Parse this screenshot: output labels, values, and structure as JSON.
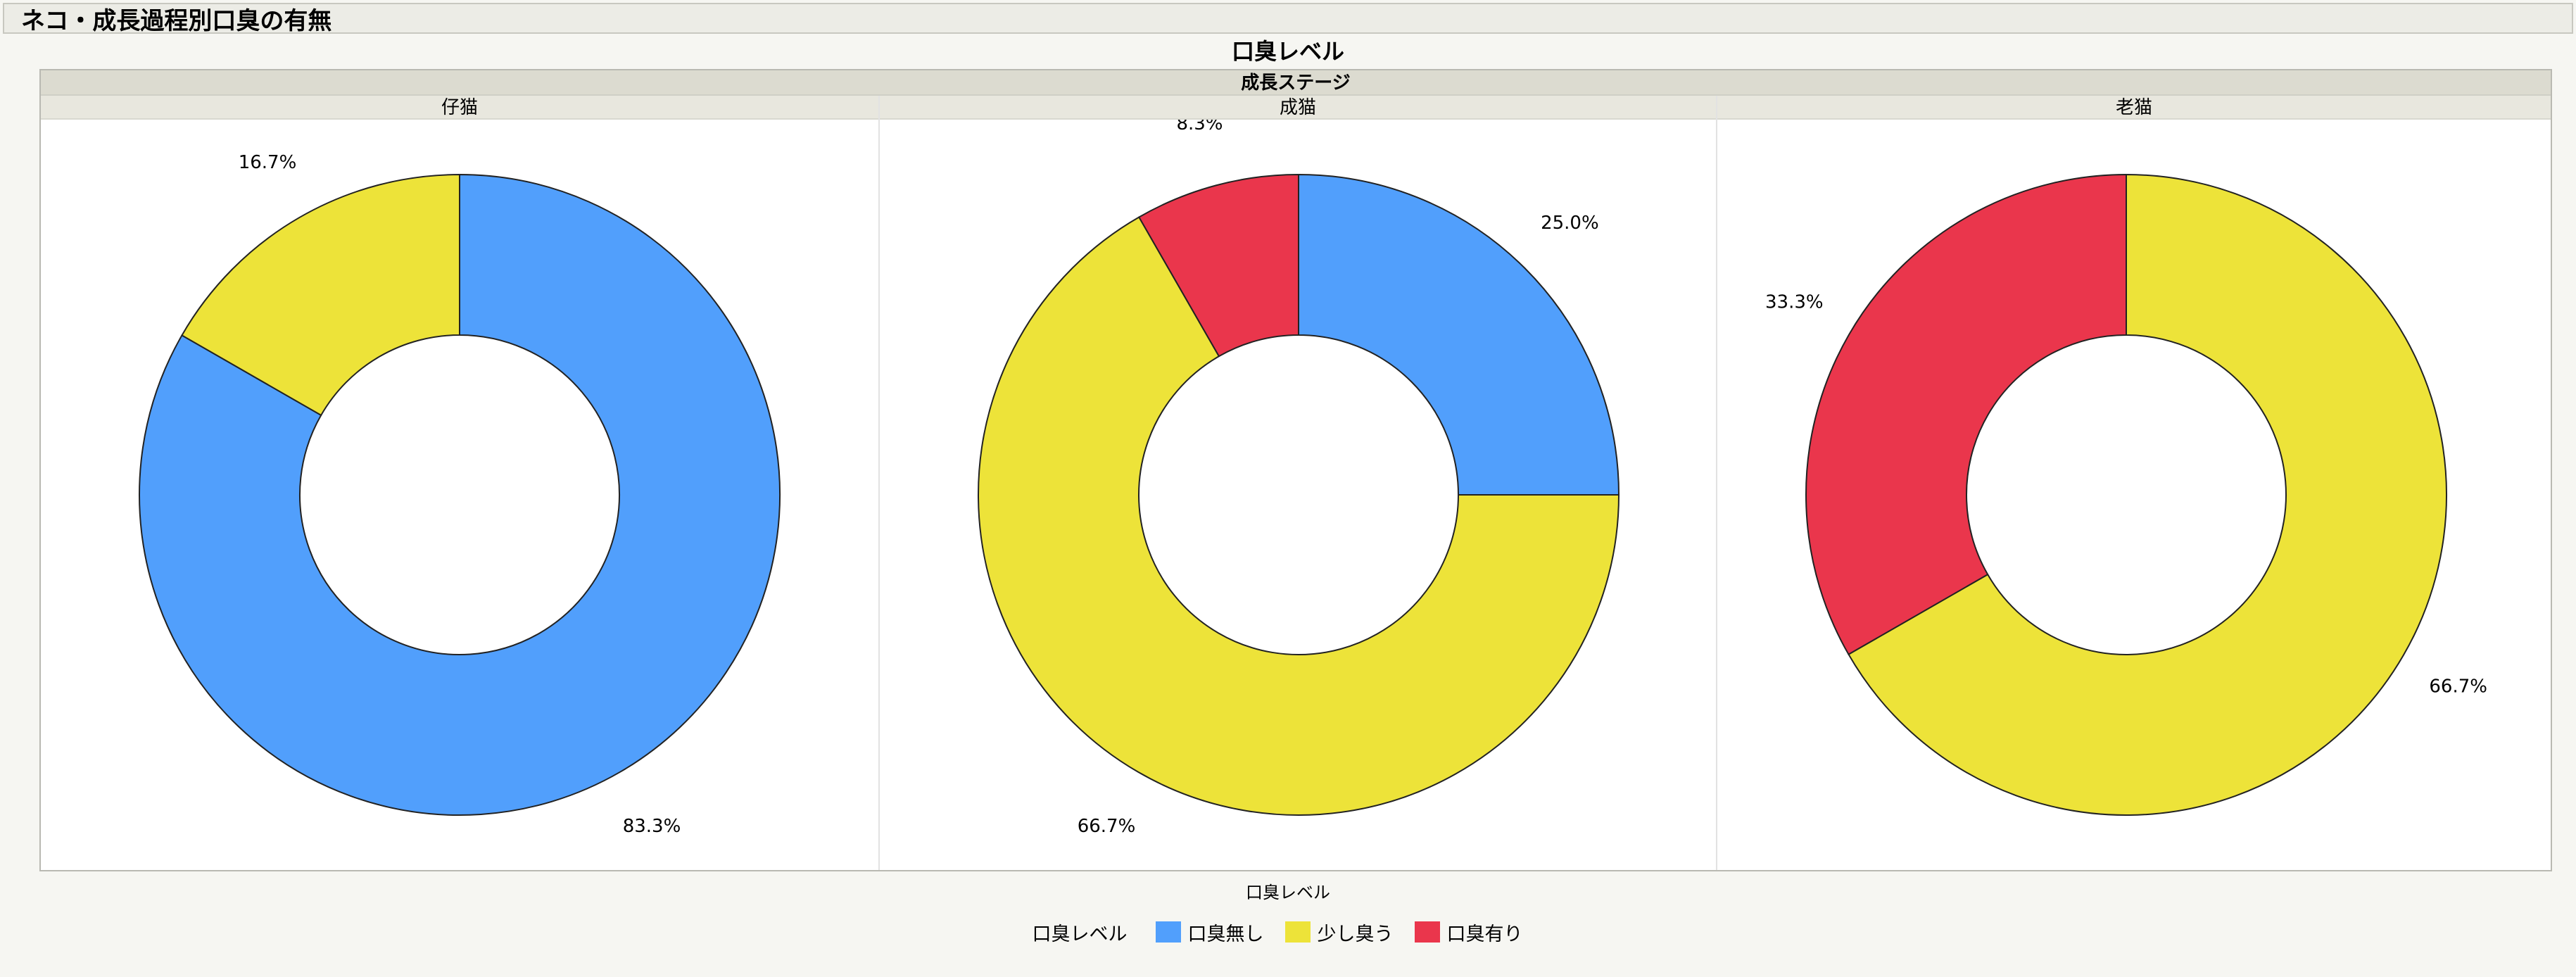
{
  "report": {
    "title": "ネコ・成長過程別口臭の有無"
  },
  "chart_data": {
    "type": "donut",
    "title": "口臭レベル",
    "group_label": "成長ステージ",
    "xlabel": "口臭レベル",
    "legend": {
      "title": "口臭レベル",
      "placement": "bottom-center",
      "items": [
        {
          "name": "口臭無し",
          "color": "#519ffc"
        },
        {
          "name": "少し臭う",
          "color": "#ede339"
        },
        {
          "name": "口臭有り",
          "color": "#ea364c"
        }
      ]
    },
    "categories": [
      "口臭無し",
      "少し臭う",
      "口臭有り"
    ],
    "panels": [
      {
        "label": "仔猫",
        "values": [
          83.3,
          16.7,
          0.0
        ],
        "labels": [
          "83.3%",
          "16.7%",
          ""
        ]
      },
      {
        "label": "成猫",
        "values": [
          25.0,
          66.7,
          8.3
        ],
        "labels": [
          "25.0%",
          "66.7%",
          "8.3%"
        ]
      },
      {
        "label": "老猫",
        "values": [
          0.0,
          66.7,
          33.3
        ],
        "labels": [
          "",
          "66.7%",
          "33.3%"
        ]
      }
    ]
  }
}
